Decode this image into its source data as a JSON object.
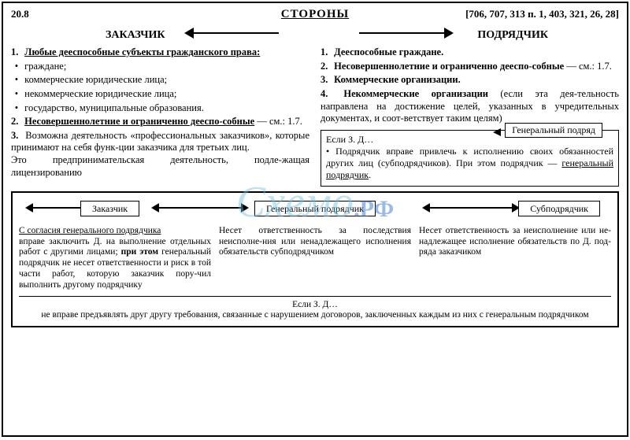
{
  "header": {
    "section": "20.8",
    "refs": "[706, 707, 313 п. 1, 403, 321, 26, 28]",
    "title": "СТОРОНЫ"
  },
  "sides": {
    "left": "ЗАКАЗЧИК",
    "right": "ПОДРЯДЧИК"
  },
  "watermark": {
    "text": "Схемо",
    "suffix": ".РФ"
  },
  "customer": {
    "items": [
      {
        "n": "1.",
        "text": "<b><span class='u'>Любые дееспособные субъекты гражданского права:</span></b>"
      },
      {
        "n": "",
        "text": "<span class='bul'>•</span> граждане;"
      },
      {
        "n": "",
        "text": "<span class='bul'>•</span> коммерческие юридические лица;"
      },
      {
        "n": "",
        "text": "<span class='bul'>•</span> некоммерческие юридические лица;"
      },
      {
        "n": "",
        "text": "<span class='bul'>•</span> государство, муниципальные образования."
      },
      {
        "n": "2.",
        "text": "<b><span class='u'>Несовершеннолетние и ограниченно дееспо-собные</span></b> — см.: 1.7."
      },
      {
        "n": "3.",
        "text": "Возможна деятельность «профессиональных заказчиков», которые принимают на себя функ-ции заказчика для третьих лиц.<br>Это предпринимательская деятельность, подле-жащая лицензированию"
      }
    ]
  },
  "contractor": {
    "items": [
      {
        "n": "1.",
        "text": "<b>Дееспособные граждане.</b>"
      },
      {
        "n": "2.",
        "text": "<b>Несовершеннолетние и ограниченно дееспо-собные</b> — см.: 1.7."
      },
      {
        "n": "3.",
        "text": "<b>Коммерческие организации.</b>"
      },
      {
        "n": "4.",
        "text": "<b>Некоммерческие организации</b> (если эта дея-тельность направлена на достижение целей, указанных в учредительных документах, и соот-ветствует таким целям)"
      }
    ]
  },
  "general": {
    "title": "Генеральный подряд",
    "body": "Если З. Д…<br>• Подрядчик вправе привлечь к исполнению своих обязанностей других лиц (субподрядчиков). При этом подрядчик — <span class='u'>генеральный подрядчик</span>."
  },
  "chain": {
    "n1": "Заказчик",
    "n2": "Генеральный подрядчик",
    "n3": "Субподрядчик"
  },
  "low": {
    "c1": "<span class='u'>С согласия генерального подрядчика</span><br>вправе заключить Д. на выполнение отдельных работ с другими лицами; <b>при этом</b> генеральный подрядчик не несет ответственности и риск в той части работ, которую заказчик пору-чил выполнить другому подрядчику",
    "c2": "Несет ответственность за последствия неисполне-ния или ненадлежащего исполнения обязательств субподрядчиком",
    "c3": "Несет ответственность за неисполнение или не-надлежащее исполнение обязательств по Д. под-ряда заказчиком",
    "foot": "Если З. Д…<br>не вправе предъявлять друг другу требования, связанные с нарушением договоров, заключенных каждым из них с генеральным подрядчиком"
  },
  "style": {
    "border": "#000000",
    "bg": "#ffffff",
    "wm_color": "#6fbfe0",
    "wm_rf": "#1e68c9"
  }
}
